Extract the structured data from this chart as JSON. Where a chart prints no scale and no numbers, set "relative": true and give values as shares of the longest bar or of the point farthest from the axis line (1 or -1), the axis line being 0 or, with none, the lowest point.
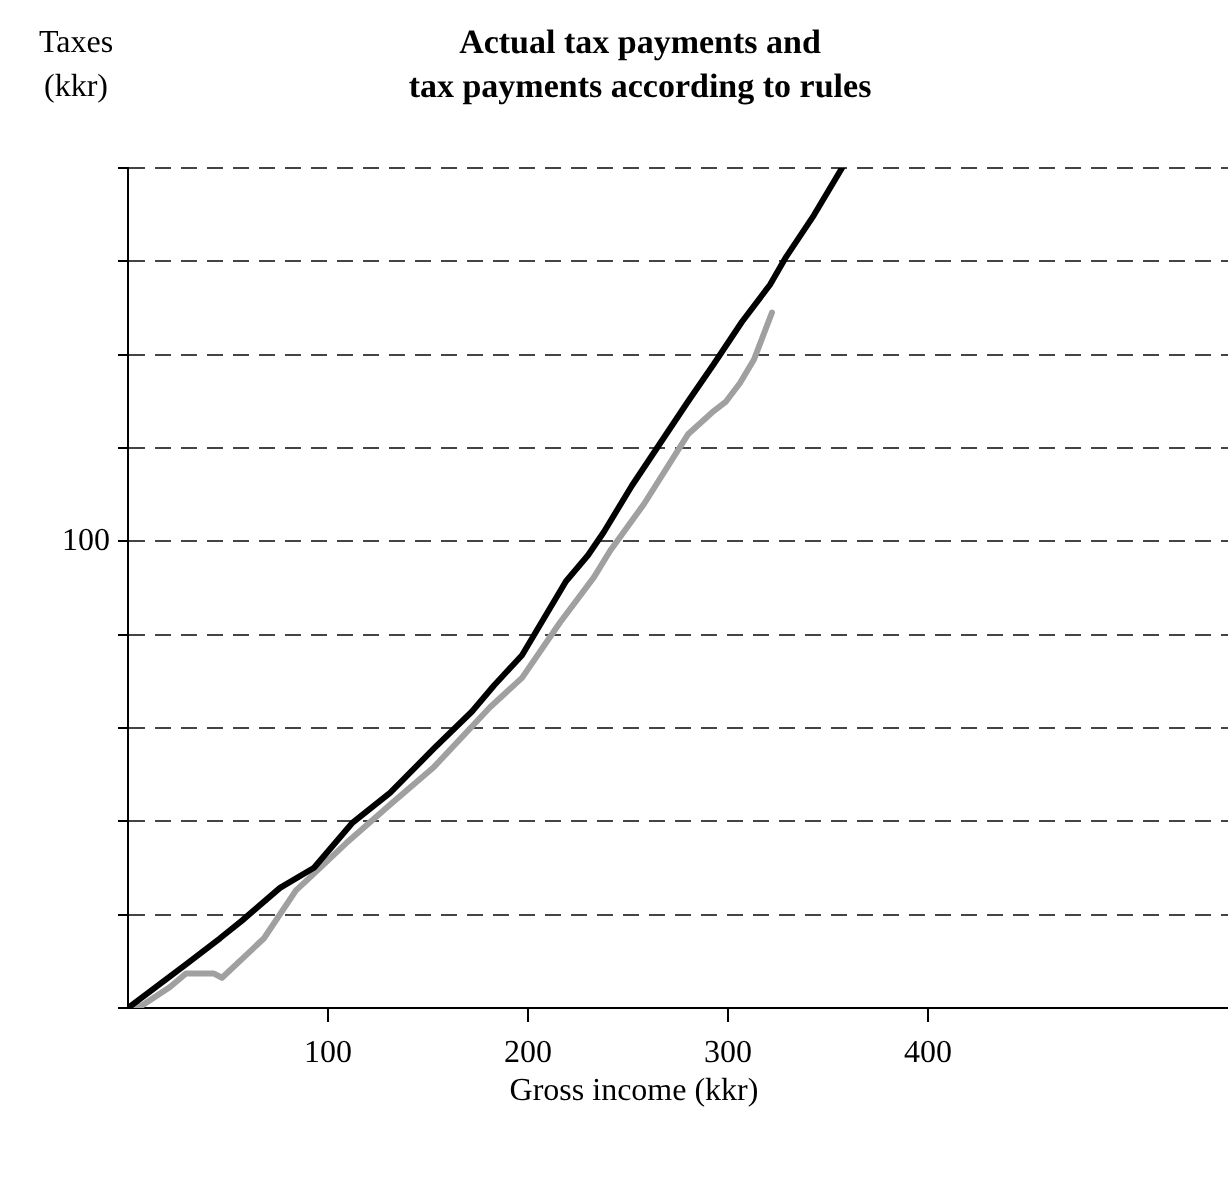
{
  "chart_data": {
    "type": "line",
    "title": "Actual tax payments and\ntax payments according to rules",
    "xlabel": "Gross income (kkr)",
    "ylabel": "Taxes\n(kkr)",
    "relative": true,
    "annotations": [
      "100"
    ],
    "xlim": [
      0,
      550
    ],
    "xticks": [
      100,
      200,
      300,
      400
    ],
    "grid": "y",
    "legend": false,
    "marker": "none",
    "line_style": "solid",
    "series": [
      {
        "color": "#000000",
        "x": [
          0,
          29,
          46,
          57,
          76,
          93,
          112,
          131,
          153,
          172,
          183,
          197,
          208,
          219,
          230,
          238,
          252,
          266,
          280,
          293,
          307,
          321,
          329,
          343,
          357
        ],
        "values": [
          0,
          0.052,
          0.083,
          0.104,
          0.143,
          0.167,
          0.22,
          0.256,
          0.309,
          0.353,
          0.384,
          0.42,
          0.464,
          0.508,
          0.539,
          0.567,
          0.622,
          0.672,
          0.722,
          0.767,
          0.817,
          0.861,
          0.894,
          0.944,
          1
        ]
      },
      {
        "color": "#a0a0a0",
        "x": [
          0,
          7,
          21,
          29,
          43,
          47,
          60,
          68,
          84,
          93,
          109,
          131,
          153,
          181,
          197,
          216,
          233,
          241,
          258,
          280,
          293,
          299,
          306,
          313,
          322
        ],
        "values": [
          0,
          0.003,
          0.025,
          0.041,
          0.041,
          0.036,
          0.065,
          0.083,
          0.14,
          0.16,
          0.196,
          0.242,
          0.287,
          0.358,
          0.393,
          0.459,
          0.513,
          0.544,
          0.6,
          0.683,
          0.711,
          0.722,
          0.744,
          0.772,
          0.828
        ]
      }
    ]
  }
}
